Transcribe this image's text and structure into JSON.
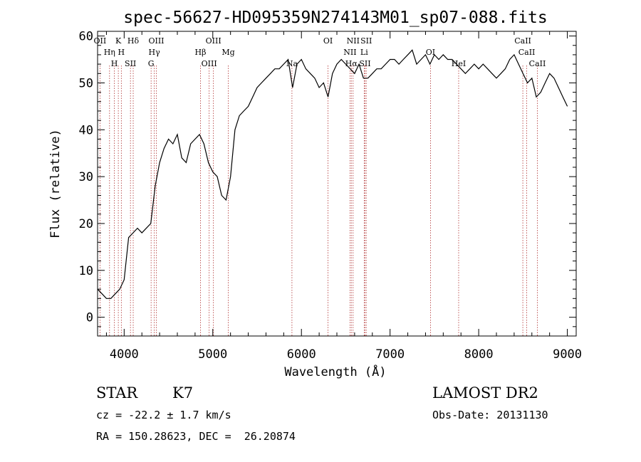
{
  "chart_data": {
    "type": "line",
    "title": "spec-56627-HD095359N274143M01_sp07-088.fits",
    "xlabel": "Wavelength (Å)",
    "ylabel": "Flux (relative)",
    "xlim": [
      3700,
      9100
    ],
    "ylim": [
      -4,
      61
    ],
    "xticks": [
      4000,
      5000,
      6000,
      7000,
      8000,
      9000
    ],
    "yticks": [
      0,
      10,
      20,
      30,
      40,
      50,
      60
    ],
    "grid": false,
    "series": [
      {
        "x": [
          3700,
          3750,
          3800,
          3850,
          3900,
          3950,
          4000,
          4050,
          4100,
          4150,
          4200,
          4250,
          4300,
          4350,
          4400,
          4450,
          4500,
          4550,
          4600,
          4650,
          4700,
          4750,
          4800,
          4850,
          4900,
          4950,
          5000,
          5050,
          5100,
          5150,
          5200,
          5250,
          5300,
          5350,
          5400,
          5450,
          5500,
          5550,
          5600,
          5650,
          5700,
          5750,
          5800,
          5850,
          5900,
          5950,
          6000,
          6050,
          6100,
          6150,
          6200,
          6250,
          6300,
          6350,
          6400,
          6450,
          6500,
          6550,
          6600,
          6650,
          6700,
          6750,
          6800,
          6850,
          6900,
          6950,
          7000,
          7050,
          7100,
          7150,
          7200,
          7250,
          7300,
          7350,
          7400,
          7450,
          7500,
          7550,
          7600,
          7650,
          7700,
          7750,
          7800,
          7850,
          7900,
          7950,
          8000,
          8050,
          8100,
          8150,
          8200,
          8250,
          8300,
          8350,
          8400,
          8450,
          8500,
          8550,
          8600,
          8650,
          8700,
          8750,
          8800,
          8850,
          8900,
          8950,
          9000
        ],
        "y": [
          6,
          5,
          4,
          4,
          5,
          6,
          8,
          17,
          18,
          19,
          18,
          19,
          20,
          28,
          33,
          36,
          38,
          37,
          39,
          34,
          33,
          37,
          38,
          39,
          37,
          33,
          31,
          30,
          26,
          25,
          30,
          40,
          43,
          44,
          45,
          47,
          49,
          50,
          51,
          52,
          53,
          53,
          54,
          55,
          49,
          54,
          55,
          53,
          52,
          51,
          49,
          50,
          47,
          52,
          54,
          55,
          54,
          53,
          52,
          54,
          51,
          51,
          52,
          53,
          53,
          54,
          55,
          55,
          54,
          55,
          56,
          57,
          54,
          55,
          56,
          54,
          56,
          55,
          56,
          55,
          55,
          54,
          53,
          52,
          53,
          54,
          53,
          54,
          53,
          52,
          51,
          52,
          53,
          55,
          56,
          54,
          52,
          50,
          51,
          47,
          48,
          50,
          52,
          51,
          49,
          47,
          45
        ]
      }
    ],
    "spectral_lines": [
      {
        "label": "OII",
        "w": 3727
      },
      {
        "label": "Hη",
        "w": 3835
      },
      {
        "label": "H",
        "w": 3889
      },
      {
        "label": "K",
        "w": 3934
      },
      {
        "label": "H",
        "w": 3968
      },
      {
        "label": "SII",
        "w": 4071
      },
      {
        "label": "Hδ",
        "w": 4102
      },
      {
        "label": "Hγ",
        "w": 4340
      },
      {
        "label": "G",
        "w": 4304
      },
      {
        "label": "OIII",
        "w": 4363
      },
      {
        "label": "Hβ",
        "w": 4861
      },
      {
        "label": "OIII",
        "w": 4959
      },
      {
        "label": "OIII",
        "w": 5007
      },
      {
        "label": "Mg",
        "w": 5175
      },
      {
        "label": "Na",
        "w": 5893
      },
      {
        "label": "OI",
        "w": 6300
      },
      {
        "label": "NII",
        "w": 6548
      },
      {
        "label": "Hα",
        "w": 6563
      },
      {
        "label": "NII",
        "w": 6583
      },
      {
        "label": "Li",
        "w": 6708
      },
      {
        "label": "SII",
        "w": 6717
      },
      {
        "label": "SII",
        "w": 6731
      },
      {
        "label": "OI",
        "w": 7456
      },
      {
        "label": "HeI",
        "w": 7774
      },
      {
        "label": "CaII",
        "w": 8498
      },
      {
        "label": "CaII",
        "w": 8542
      },
      {
        "label": "CaII",
        "w": 8662
      }
    ]
  },
  "info": {
    "class": "STAR",
    "subclass": "K7",
    "cz": "cz = -22.2 ± 1.7 km/s",
    "radec": "RA = 150.28623, DEC =  26.20874",
    "survey": "LAMOST DR2",
    "obsdate": "Obs-Date: 20131130"
  }
}
